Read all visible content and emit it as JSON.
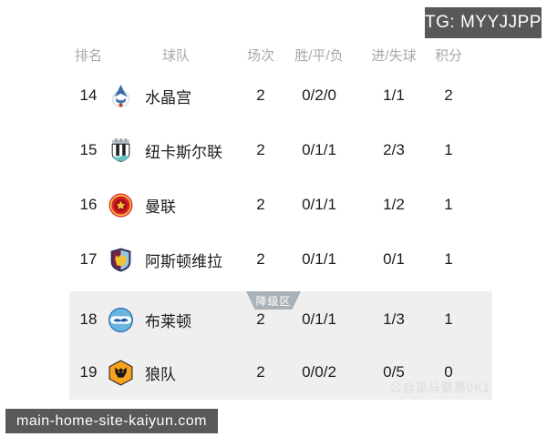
{
  "page": {
    "tg_badge": "TG: MYYJJPP",
    "site_badge": "main-home-site-kaiyun.com",
    "watermark": "公@巫马骁惠0K1"
  },
  "table": {
    "headers": [
      "排名",
      "球队",
      "场次",
      "胜/平/负",
      "进/失球",
      "积分"
    ],
    "relegation_label": "降级区",
    "rows": [
      {
        "rank": "14",
        "team": "水晶宫",
        "icon": "crystal-palace",
        "played": "2",
        "wdl": "0/2/0",
        "goals": "1/1",
        "points": "2",
        "zone": "safe"
      },
      {
        "rank": "15",
        "team": "纽卡斯尔联",
        "icon": "newcastle",
        "played": "2",
        "wdl": "0/1/1",
        "goals": "2/3",
        "points": "1",
        "zone": "safe"
      },
      {
        "rank": "16",
        "team": "曼联",
        "icon": "man-utd",
        "played": "2",
        "wdl": "0/1/1",
        "goals": "1/2",
        "points": "1",
        "zone": "safe"
      },
      {
        "rank": "17",
        "team": "阿斯顿维拉",
        "icon": "aston-villa",
        "played": "2",
        "wdl": "0/1/1",
        "goals": "0/1",
        "points": "1",
        "zone": "safe"
      },
      {
        "rank": "18",
        "team": "布莱顿",
        "icon": "brighton",
        "played": "2",
        "wdl": "0/1/1",
        "goals": "1/3",
        "points": "1",
        "zone": "relegation"
      },
      {
        "rank": "19",
        "team": "狼队",
        "icon": "wolves",
        "played": "2",
        "wdl": "0/0/2",
        "goals": "0/5",
        "points": "0",
        "zone": "relegation"
      }
    ]
  },
  "colors": {
    "badge_bg": "#58595b",
    "panel_bg": "#efeff0",
    "relegation_tab_bg": "#a9b2b9",
    "header_text": "#a8a8a8",
    "body_text": "#1b1b1b"
  }
}
